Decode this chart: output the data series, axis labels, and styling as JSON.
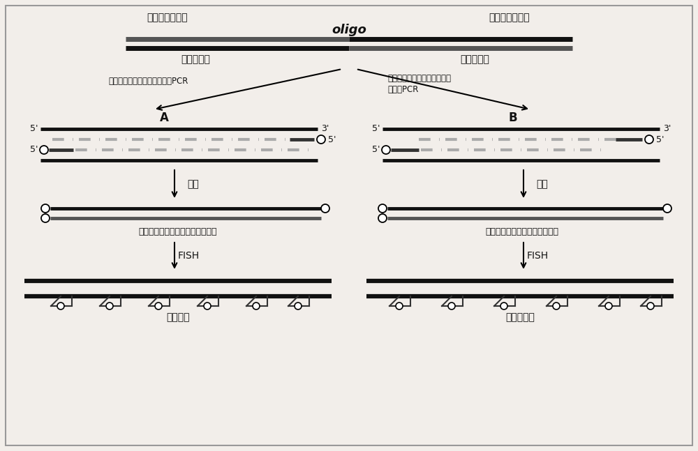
{
  "bg_color": "#f2eeea",
  "text_color": "#111111",
  "line_color": "#111111",
  "oligo_label": "oligo",
  "top_left_label": "每段特异前引物",
  "top_right_label": "每段特异后引物",
  "overall_fwd_label": "整体前引物",
  "overall_rev_label": "整体后引物",
  "pcr_label_A": "荧光标记的整体前后引物进行PCR",
  "pcr_label_B_line1": "荧光标记的每段特异的前后引",
  "pcr_label_B_line2": "物进行PCR",
  "purify_label": "纯化",
  "fish_label": "FISH",
  "label_A": "A",
  "label_B": "B",
  "probe_label_A": "覆盖整条染色体的双链寯核苷探针",
  "probe_label_B": "覆盖某一分段的双链寯核苷探针",
  "result_label_A": "全染色体",
  "result_label_B": "染色体片段",
  "fig_width": 10.0,
  "fig_height": 6.47,
  "fig_dpi": 100
}
